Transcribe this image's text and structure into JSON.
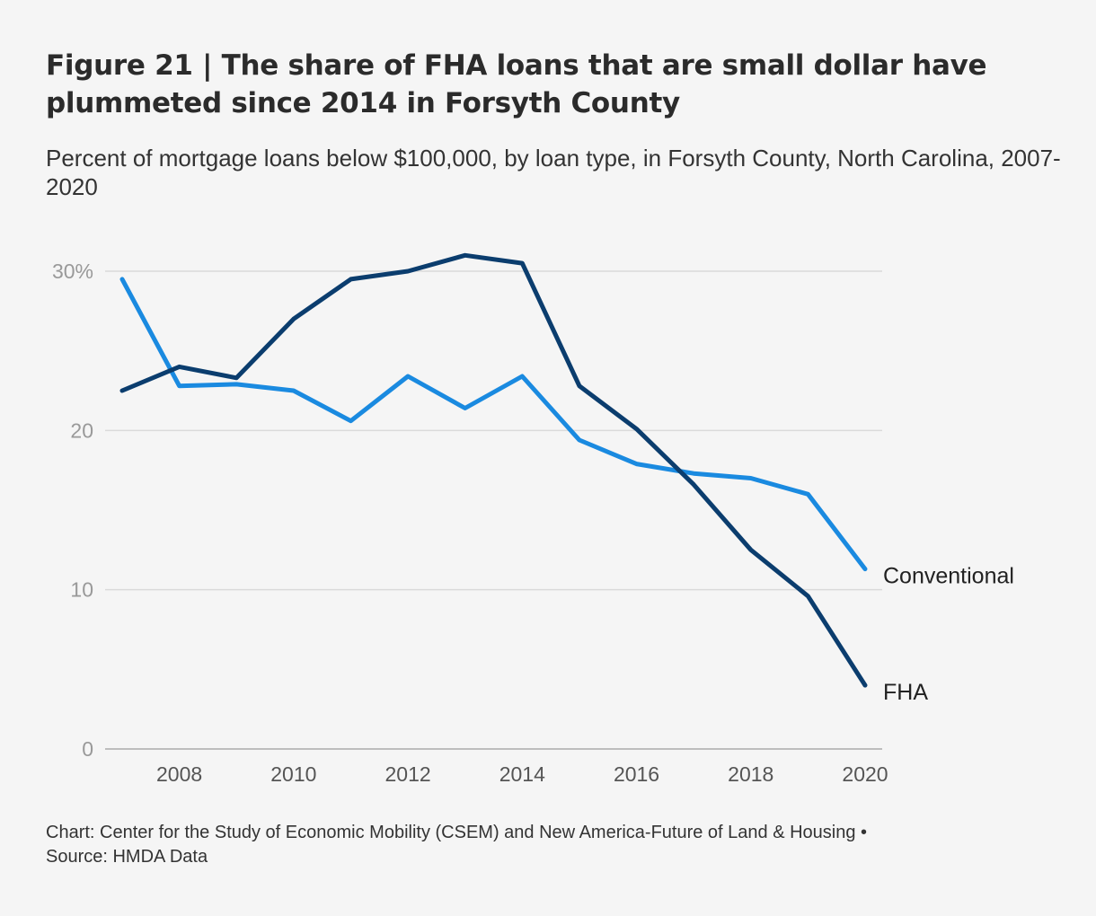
{
  "header": {
    "title": "Figure 21 | The share of FHA loans that are small dollar have plummeted since 2014 in Forsyth County",
    "subtitle": "Percent of mortgage loans below $100,000, by loan type, in Forsyth County, North Carolina, 2007-2020"
  },
  "footer": {
    "credit": "Chart: Center for the Study of Economic Mobility (CSEM) and New America-Future of Land & Housing •",
    "source": "Source: HMDA Data"
  },
  "chart_data": {
    "type": "line",
    "title": "Figure 21 | The share of FHA loans that are small dollar have plummeted since 2014 in Forsyth County",
    "subtitle": "Percent of mortgage loans below $100,000, by loan type, in Forsyth County, North Carolina, 2007-2020",
    "xlabel": "",
    "ylabel": "",
    "x": [
      2007,
      2008,
      2009,
      2010,
      2011,
      2012,
      2013,
      2014,
      2015,
      2016,
      2017,
      2018,
      2019,
      2020
    ],
    "xlim": [
      2007,
      2020
    ],
    "ylim": [
      0,
      30
    ],
    "x_ticks": [
      {
        "value": 2008,
        "label": "2008"
      },
      {
        "value": 2010,
        "label": "2010"
      },
      {
        "value": 2012,
        "label": "2012"
      },
      {
        "value": 2014,
        "label": "2014"
      },
      {
        "value": 2016,
        "label": "2016"
      },
      {
        "value": 2018,
        "label": "2018"
      },
      {
        "value": 2020,
        "label": "2020"
      }
    ],
    "y_ticks": [
      {
        "value": 0,
        "label": "0"
      },
      {
        "value": 10,
        "label": "10"
      },
      {
        "value": 20,
        "label": "20"
      },
      {
        "value": 30,
        "label": "30%"
      }
    ],
    "grid": true,
    "legend": "direct labels at line ends (right)",
    "series": [
      {
        "name": "Conventional",
        "color": "#1a8ae0",
        "values": [
          29.5,
          22.8,
          22.9,
          22.5,
          20.6,
          23.4,
          21.4,
          23.4,
          19.4,
          17.9,
          17.3,
          17.0,
          16.0,
          11.3
        ]
      },
      {
        "name": "FHA",
        "color": "#0b3d6e",
        "values": [
          22.5,
          24.0,
          23.3,
          27.0,
          29.5,
          30.0,
          31.0,
          30.5,
          22.8,
          20.1,
          16.6,
          12.5,
          9.6,
          4.0
        ]
      }
    ]
  }
}
